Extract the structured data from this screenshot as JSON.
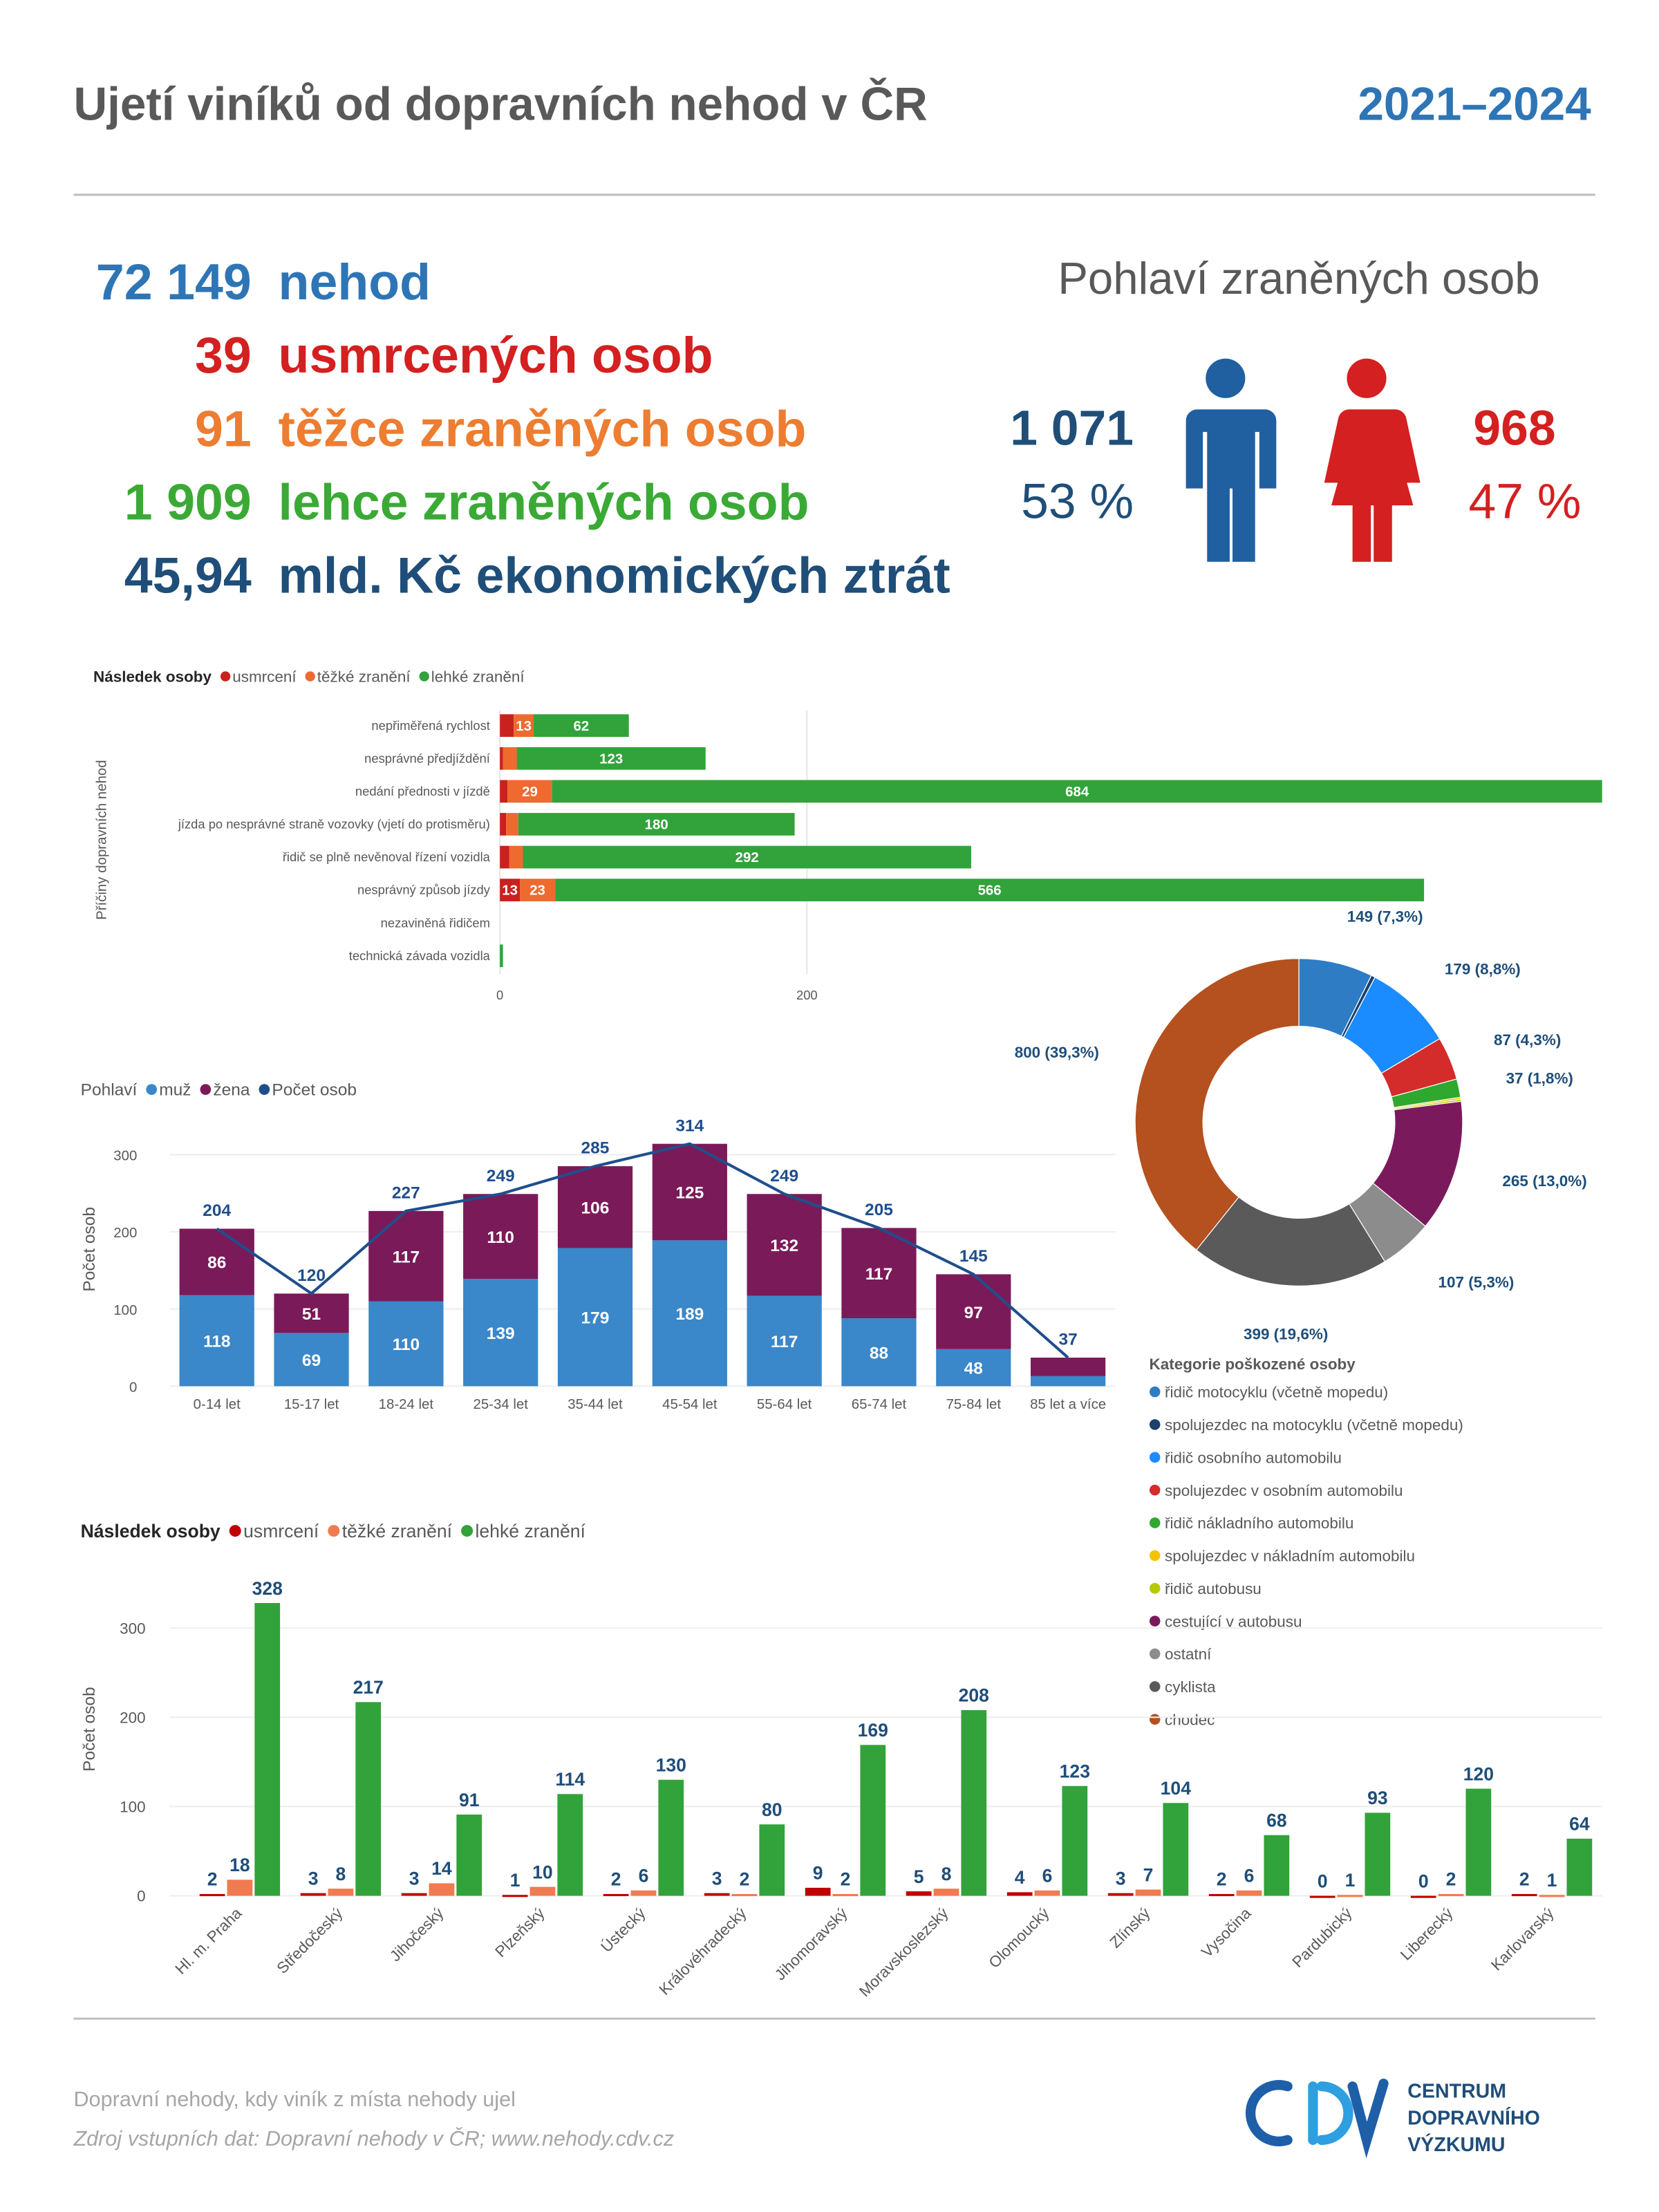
{
  "header": {
    "title": "Ujetí viníků od dopravních nehod v ČR",
    "period": "2021–2024"
  },
  "stats": [
    {
      "value": "72 149",
      "label": "nehod",
      "color": "#2e75b6"
    },
    {
      "value": "39",
      "label": "usmrcených osob",
      "color": "#d42020"
    },
    {
      "value": "91",
      "label": "těžce zraněných osob",
      "color": "#ed7d31"
    },
    {
      "value": "1 909",
      "label": "lehce zraněných osob",
      "color": "#3aaa35"
    },
    {
      "value": "45,94",
      "label": "mld. Kč ekonomických ztrát",
      "color": "#1f4e79"
    }
  ],
  "gender": {
    "title": "Pohlaví zraněných osob",
    "male": {
      "count": "1 071",
      "share": "53 %",
      "color": "#1f4e79"
    },
    "female": {
      "count": "968",
      "share": "47 %",
      "color": "#d42020"
    }
  },
  "chart_data": [
    {
      "type": "hbar",
      "stacked": true,
      "legend_title": "Následek osoby",
      "y_label": "Příčiny dopravních nehod",
      "categories": [
        "nepřiměřená rychlost",
        "nesprávné předjíždění",
        "nedání přednosti v jízdě",
        "jízda po nesprávné straně vozovky (vjetí do protisměru)",
        "řidič se plně nevěnoval řízení vozidla",
        "nesprávný způsob jízdy",
        "nezaviněná řidičem",
        "technická závada vozidla"
      ],
      "series": [
        {
          "name": "usmrcení",
          "color": "#c9211e",
          "values": [
            9,
            2,
            5,
            4,
            6,
            13,
            0,
            0
          ]
        },
        {
          "name": "těžké zranění",
          "color": "#ee6a2f",
          "values": [
            13,
            9,
            29,
            8,
            9,
            23,
            0,
            0
          ]
        },
        {
          "name": "lehké zranění",
          "color": "#31a33a",
          "values": [
            62,
            123,
            684,
            180,
            292,
            566,
            0,
            2
          ]
        }
      ],
      "xlim": [
        0,
        720
      ],
      "xticks": [
        0,
        200
      ],
      "grid": true
    },
    {
      "type": "combo",
      "stacked": true,
      "legend_title": "Pohlaví",
      "y_label": "Počet osob",
      "categories": [
        "0-14 let",
        "15-17 let",
        "18-24 let",
        "25-34 let",
        "35-44 let",
        "45-54 let",
        "55-64 let",
        "65-74 let",
        "75-84 let",
        "85 let a více"
      ],
      "series": [
        {
          "name": "muž",
          "color": "#3a87c9",
          "values": [
            118,
            69,
            110,
            139,
            179,
            189,
            117,
            88,
            48,
            13
          ]
        },
        {
          "name": "žena",
          "color": "#7b1a58",
          "values": [
            86,
            51,
            117,
            110,
            106,
            125,
            132,
            117,
            97,
            24
          ]
        },
        {
          "name": "Počet osob",
          "color": "#1f4e8c",
          "type": "line",
          "values": [
            204,
            120,
            227,
            249,
            285,
            314,
            249,
            205,
            145,
            37
          ]
        }
      ],
      "ylim": [
        0,
        320
      ],
      "yticks": [
        0,
        100,
        200,
        300
      ],
      "grid": true
    },
    {
      "type": "donut",
      "legend_title": "Kategorie poškozené osoby",
      "categories": [
        "řidič motocyklu (včetně mopedu)",
        "spolujezdec na motocyklu (včetně mopedu)",
        "řidič osobního automobilu",
        "spolujezdec v osobním automobilu",
        "řidič nákladního automobilu",
        "spolujezdec v nákladním automobilu",
        "řidič autobusu",
        "cestující v autobusu",
        "ostatní",
        "cyklista",
        "chodec"
      ],
      "values": [
        149,
        8,
        179,
        87,
        37,
        4,
        4,
        265,
        107,
        399,
        800
      ],
      "value_labels": [
        "149 (7,3%)",
        null,
        "179 (8,8%)",
        "87 (4,3%)",
        "37 (1,8%)",
        null,
        null,
        "265 (13,0%)",
        "107 (5,3%)",
        "399 (19,6%)",
        "800 (39,3%)"
      ],
      "colors": [
        "#2e7cc4",
        "#1b3f6e",
        "#1a8cff",
        "#d42b2b",
        "#2ea82e",
        "#f2c200",
        "#b5c800",
        "#7a1a5c",
        "#8c8c8c",
        "#5a5a5a",
        "#b5501f"
      ]
    },
    {
      "type": "bar",
      "stacked": false,
      "legend_title": "Následek osoby",
      "y_label": "Počet osob",
      "categories": [
        "Hl. m. Praha",
        "Středočeský",
        "Jihočeský",
        "Plzeňský",
        "Ústecký",
        "Královéhradecký",
        "Jihomoravský",
        "Moravskoslezský",
        "Olomoucký",
        "Zlínský",
        "Vysočina",
        "Pardubický",
        "Liberecký",
        "Karlovarský"
      ],
      "series": [
        {
          "name": "usmrcení",
          "color": "#c00000",
          "values": [
            2,
            3,
            3,
            1,
            2,
            3,
            9,
            5,
            4,
            3,
            2,
            0,
            0,
            2
          ]
        },
        {
          "name": "těžké zranění",
          "color": "#f07b50",
          "values": [
            18,
            8,
            14,
            10,
            6,
            2,
            2,
            8,
            6,
            7,
            6,
            1,
            2,
            1
          ]
        },
        {
          "name": "lehké zranění",
          "color": "#31a33a",
          "values": [
            328,
            217,
            91,
            114,
            130,
            80,
            169,
            208,
            123,
            104,
            68,
            93,
            120,
            64
          ]
        }
      ],
      "ylim": [
        0,
        340
      ],
      "yticks": [
        0,
        100,
        200,
        300
      ],
      "grid": true
    }
  ],
  "footer": {
    "note": "Dopravní nehody, kdy viník z místa nehody ujel",
    "source": "Zdroj vstupních dat: Dopravní nehody v ČR; www.nehody.cdv.cz"
  },
  "logo": {
    "lines": [
      "CENTRUM",
      "DOPRAVNÍHO",
      "VÝZKUMU"
    ]
  }
}
